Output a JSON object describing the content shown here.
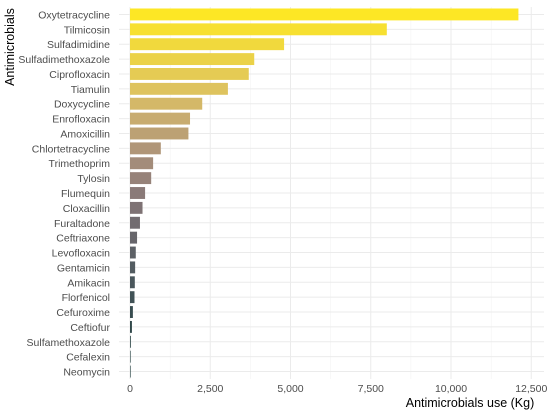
{
  "chart_data": {
    "type": "bar",
    "orientation": "horizontal",
    "title": "",
    "xlabel": "Antimicrobials use (Kg)",
    "ylabel": "Antimicrobials",
    "xlim": [
      0,
      12500
    ],
    "x_ticks": [
      0,
      2500,
      5000,
      7500,
      10000,
      12500
    ],
    "x_tick_labels": [
      "0",
      "2,500",
      "5,000",
      "7,500",
      "10,000",
      "12,500"
    ],
    "grid": true,
    "legend": "none",
    "categories": [
      "Oxytetracycline",
      "Tilmicosin",
      "Sulfadimidine",
      "Sulfadimethoxazole",
      "Ciprofloxacin",
      "Tiamulin",
      "Doxycycline",
      "Enrofloxacin",
      "Amoxicillin",
      "Chlortetracycline",
      "Trimethoprim",
      "Tylosin",
      "Flumequin",
      "Cloxacillin",
      "Furaltadone",
      "Ceftriaxone",
      "Levofloxacin",
      "Gentamicin",
      "Amikacin",
      "Florfenicol",
      "Cefuroxime",
      "Ceftiofur",
      "Sulfamethoxazole",
      "Cefalexin",
      "Neomycin"
    ],
    "values": [
      12100,
      8000,
      4800,
      3870,
      3700,
      3050,
      2250,
      1870,
      1820,
      960,
      720,
      660,
      470,
      390,
      310,
      220,
      180,
      160,
      150,
      140,
      90,
      60,
      25,
      15,
      5
    ],
    "colors": [
      "#fde725",
      "#f7e031",
      "#f1d93d",
      "#ebd248",
      "#e5cb54",
      "#dec35e",
      "#d4b868",
      "#c8ac70",
      "#bca174",
      "#b09678",
      "#a38c7a",
      "#968279",
      "#8a7a78",
      "#7e7274",
      "#726c70",
      "#67666b",
      "#5d6166",
      "#535c61",
      "#4a575c",
      "#415256",
      "#384d50",
      "#30484a",
      "#284344",
      "#213e3e",
      "#1b3a39"
    ]
  }
}
